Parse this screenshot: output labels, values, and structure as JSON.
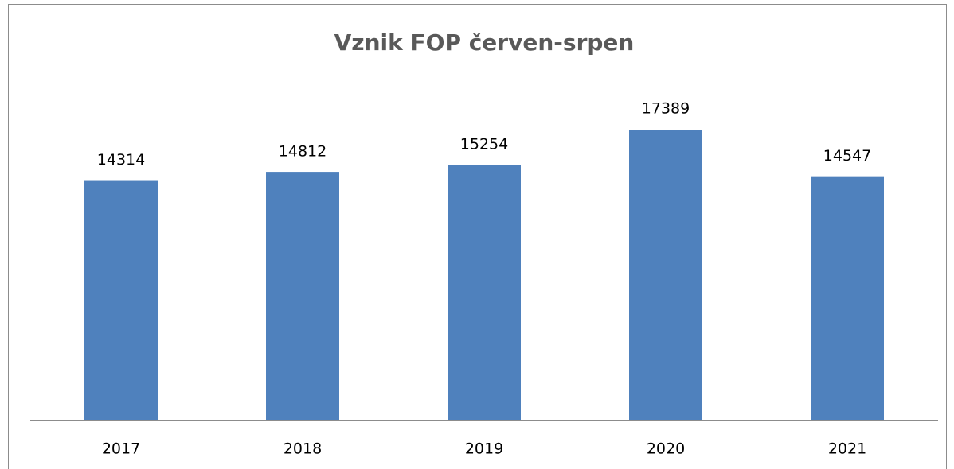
{
  "chart_data": {
    "type": "bar",
    "title": "Vznik FOP červen-srpen",
    "categories": [
      "2017",
      "2018",
      "2019",
      "2020",
      "2021"
    ],
    "values": [
      14314,
      14812,
      15254,
      17389,
      14547
    ],
    "color": "#4f81bd"
  }
}
